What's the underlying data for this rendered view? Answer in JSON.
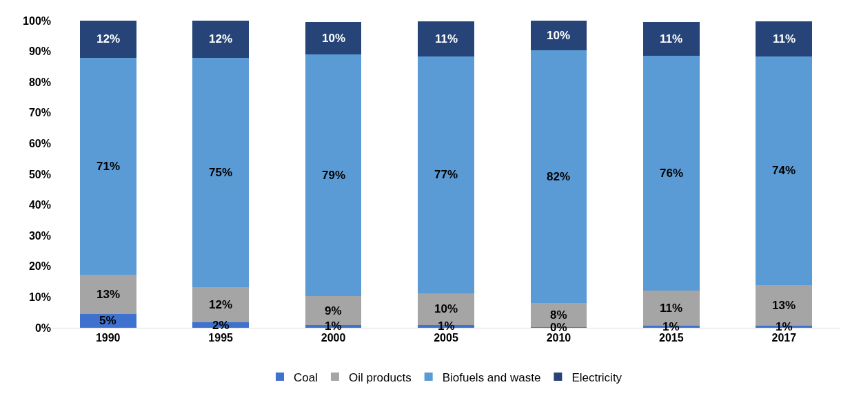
{
  "chart_data": {
    "type": "bar",
    "stacked": true,
    "categories": [
      "1990",
      "1995",
      "2000",
      "2005",
      "2010",
      "2015",
      "2017"
    ],
    "series": [
      {
        "name": "Coal",
        "color": "#3f72cf",
        "values": [
          4.5,
          1.7,
          0.9,
          0.9,
          0.2,
          0.7,
          0.6
        ],
        "value_labels": [
          "5%",
          "2%",
          "1%",
          "1%",
          "0%",
          "1%",
          "1%"
        ]
      },
      {
        "name": "Oil products",
        "color": "#a5a5a5",
        "values": [
          12.7,
          11.5,
          9.4,
          10.4,
          7.8,
          11.4,
          13.4
        ],
        "value_labels": [
          "13%",
          "12%",
          "9%",
          "10%",
          "8%",
          "11%",
          "13%"
        ]
      },
      {
        "name": "Biofuels and waste",
        "color": "#5b9bd5",
        "values": [
          70.8,
          74.8,
          78.8,
          77.1,
          82.3,
          76.4,
          74.4
        ],
        "value_labels": [
          "71%",
          "75%",
          "79%",
          "77%",
          "82%",
          "76%",
          "74%"
        ]
      },
      {
        "name": "Electricity",
        "color": "#264478",
        "values": [
          12.0,
          12.0,
          10.4,
          11.4,
          9.7,
          11.1,
          11.4
        ],
        "value_labels": [
          "12%",
          "12%",
          "10%",
          "11%",
          "10%",
          "11%",
          "11%"
        ]
      }
    ],
    "ylim": [
      0,
      100
    ],
    "yticks": [
      {
        "value": 0,
        "label": "0%"
      },
      {
        "value": 10,
        "label": "10%"
      },
      {
        "value": 20,
        "label": "20%"
      },
      {
        "value": 30,
        "label": "30%"
      },
      {
        "value": 40,
        "label": "40%"
      },
      {
        "value": 50,
        "label": "50%"
      },
      {
        "value": 60,
        "label": "60%"
      },
      {
        "value": 70,
        "label": "70%"
      },
      {
        "value": 80,
        "label": "80%"
      },
      {
        "value": 90,
        "label": "90%"
      },
      {
        "value": 100,
        "label": "100%"
      }
    ],
    "legend": "bottom"
  }
}
